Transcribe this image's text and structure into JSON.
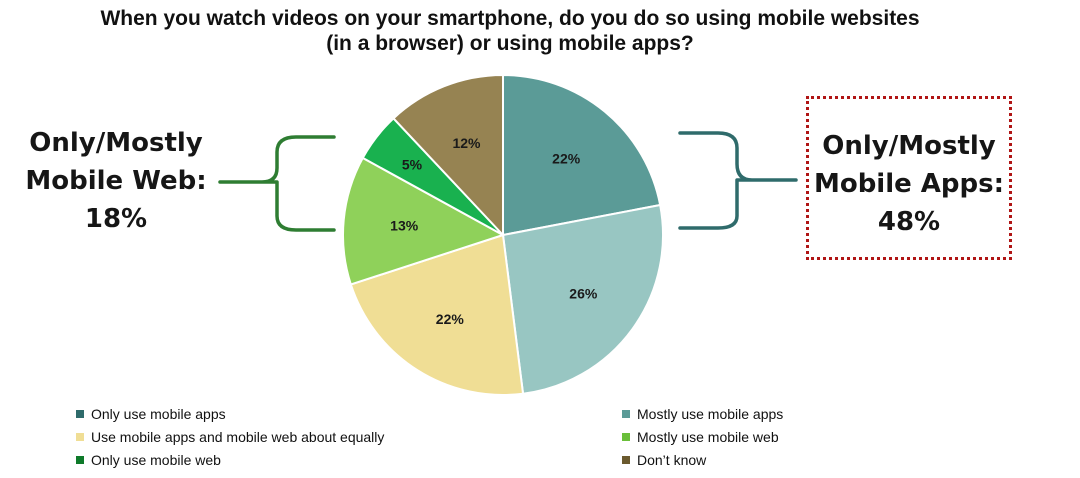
{
  "title_lines": [
    "When you watch videos on your smartphone, do you do so using mobile websites",
    "(in a browser) or using mobile apps?"
  ],
  "callouts": {
    "left": {
      "lines": [
        "Only/Mostly",
        "Mobile Web:",
        "18%"
      ],
      "bracket_color": "#2e7d32"
    },
    "right": {
      "lines": [
        "Only/Mostly",
        "Mobile Apps:",
        "48%"
      ],
      "bracket_color": "#2f6b6b",
      "border_color": "#b01515"
    }
  },
  "chart_data": {
    "type": "pie",
    "title": "When you watch videos on your smartphone, do you do so using mobile websites (in a browser) or using mobile apps?",
    "start": "12 o'clock",
    "direction": "clockwise",
    "slices": [
      {
        "label": "Only use mobile apps",
        "value": 22,
        "display": "22%",
        "color": "#5b9b97"
      },
      {
        "label": "Mostly use mobile apps",
        "value": 26,
        "display": "26%",
        "color": "#98c6c2"
      },
      {
        "label": "Use mobile apps and mobile web about equally",
        "value": 22,
        "display": "22%",
        "color": "#f0de95"
      },
      {
        "label": "Mostly use mobile web",
        "value": 13,
        "display": "13%",
        "color": "#8fd15a"
      },
      {
        "label": "Only use mobile web",
        "value": 5,
        "display": "5%",
        "color": "#19b14f"
      },
      {
        "label": "Don’t know",
        "value": 12,
        "display": "12%",
        "color": "#968352"
      }
    ],
    "legend": {
      "placement": "bottom",
      "columns": 2,
      "entries": [
        {
          "label": "Only use mobile apps",
          "color": "#2e6b6b"
        },
        {
          "label": "Mostly use mobile apps",
          "color": "#5b9b97"
        },
        {
          "label": "Use mobile apps and mobile web about equally",
          "color": "#f0de95"
        },
        {
          "label": "Mostly use mobile web",
          "color": "#6abf3a"
        },
        {
          "label": "Only use mobile web",
          "color": "#0e7a2a"
        },
        {
          "label": "Don’t know",
          "color": "#6b5a2e"
        }
      ]
    }
  }
}
